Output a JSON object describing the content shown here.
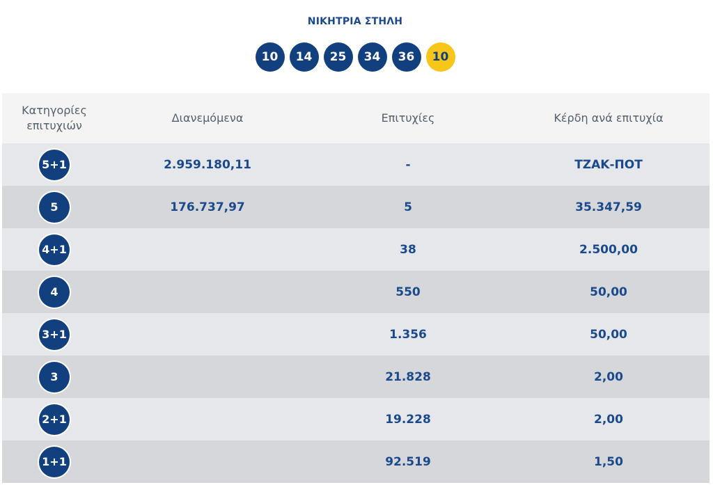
{
  "winning_title": "ΝΙΚΗΤΡΙΑ ΣΤΗΛΗ",
  "winning_numbers": [
    "10",
    "14",
    "25",
    "34",
    "36"
  ],
  "joker_number": "10",
  "table": {
    "headers": {
      "category_line1": "Κατηγορίες",
      "category_line2": "επιτυχιών",
      "distributed": "Διανεμόμενα",
      "winners": "Επιτυχίες",
      "prize": "Κέρδη ανά επιτυχία"
    },
    "rows": [
      {
        "category": "5+1",
        "distributed": "2.959.180,11",
        "winners": "-",
        "prize": "ΤΖΑΚ-ΠΟΤ"
      },
      {
        "category": "5",
        "distributed": "176.737,97",
        "winners": "5",
        "prize": "35.347,59"
      },
      {
        "category": "4+1",
        "distributed": "",
        "winners": "38",
        "prize": "2.500,00"
      },
      {
        "category": "4",
        "distributed": "",
        "winners": "550",
        "prize": "50,00"
      },
      {
        "category": "3+1",
        "distributed": "",
        "winners": "1.356",
        "prize": "50,00"
      },
      {
        "category": "3",
        "distributed": "",
        "winners": "21.828",
        "prize": "2,00"
      },
      {
        "category": "2+1",
        "distributed": "",
        "winners": "19.228",
        "prize": "2,00"
      },
      {
        "category": "1+1",
        "distributed": "",
        "winners": "92.519",
        "prize": "1,50"
      }
    ]
  },
  "colors": {
    "ball": "#12407f",
    "joker": "#f7c619",
    "text_primary": "#1b4a8c"
  }
}
